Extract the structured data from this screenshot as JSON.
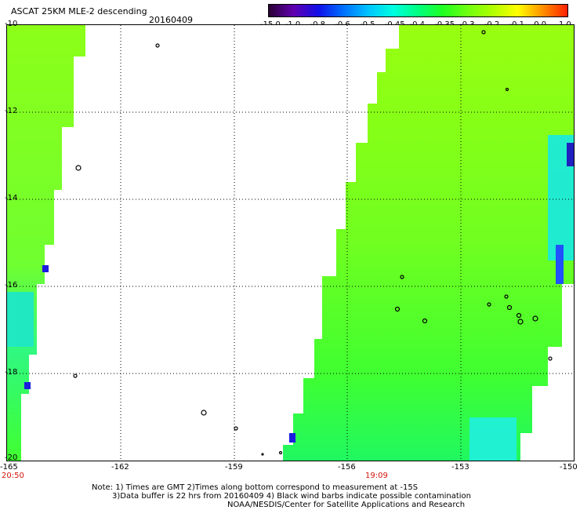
{
  "header": {
    "title": "ASCAT 25KM MLE-2 descending",
    "date": "20160409"
  },
  "colorbar": {
    "labels": [
      "-15.0",
      "-1.0",
      "-0.8",
      "-0.6",
      "-0.5",
      "-0.45",
      "-0.4",
      "-0.35",
      "-0.3",
      "-0.2",
      "-0.1",
      "0.0",
      "1.0"
    ],
    "colors": [
      "#2a0033",
      "#6000b0",
      "#1010e8",
      "#0070ff",
      "#00c4ff",
      "#00ffe0",
      "#00ff80",
      "#20ff20",
      "#70ff10",
      "#b0ff00",
      "#ffff00",
      "#ff9000",
      "#ff2000"
    ]
  },
  "axes": {
    "y_ticks": [
      "-10",
      "-12",
      "-14",
      "-16",
      "-18",
      "-20"
    ],
    "x_ticks": [
      "-165",
      "-162",
      "-159",
      "-156",
      "-153",
      "-150"
    ]
  },
  "times": {
    "left": "20:50",
    "center": "19:09"
  },
  "footer": {
    "line1": "Note: 1) Times are GMT 2)Times along bottom correspond to measurement at -15S",
    "line2": "3)Data buffer is 22 hrs from 20160409 4) Black wind barbs indicate possible contamination",
    "line3": "NOAA/NESDIS/Center for Satellite Applications and Research"
  },
  "swath": {
    "base_color": "#98ff10",
    "mid_color": "#40ff20",
    "edge_color": "#00f5ff",
    "dark_color": "#1818e0"
  }
}
